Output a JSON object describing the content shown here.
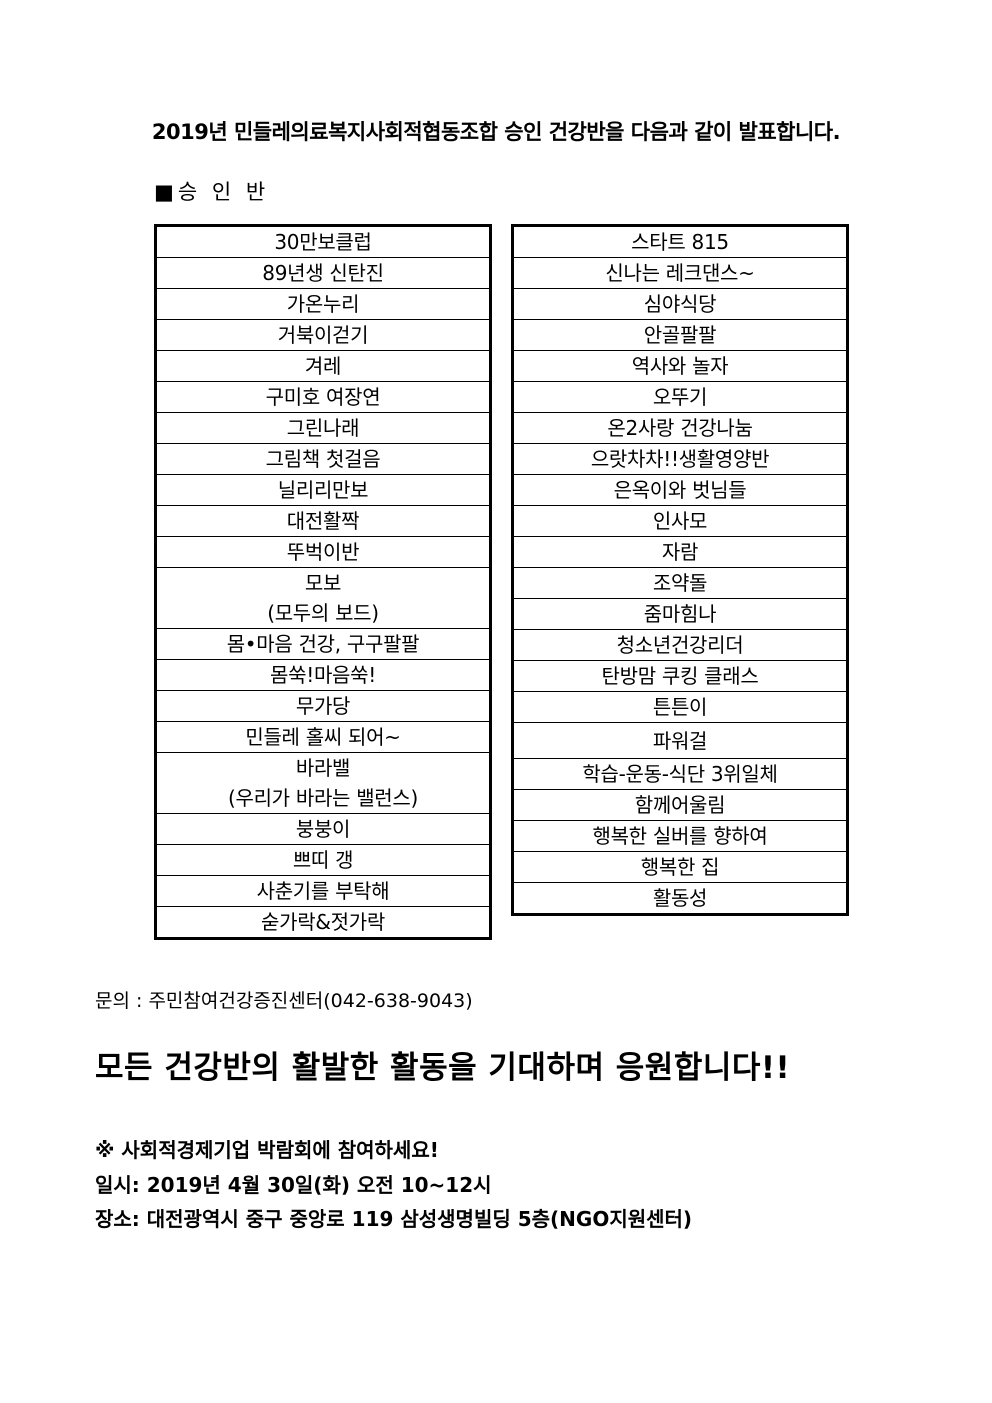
{
  "title": "2019년 민들레의료복지사회적협동조합 승인 건강반을 다음과 같이 발표합니다.",
  "section_label": "■승 인 반",
  "left_list": [
    [
      "30만보클럽"
    ],
    [
      "89년생 신탄진"
    ],
    [
      "가온누리"
    ],
    [
      "거북이걷기"
    ],
    [
      "겨레"
    ],
    [
      "구미호 여장연"
    ],
    [
      "그린나래"
    ],
    [
      "그림책 첫걸음"
    ],
    [
      "닐리리만보"
    ],
    [
      "대전활짝"
    ],
    [
      "뚜벅이반"
    ],
    [
      "모보",
      "(모두의 보드)"
    ],
    [
      "몸•마음 건강, 구구팔팔"
    ],
    [
      "몸쑥!마음쑥!"
    ],
    [
      "무가당"
    ],
    [
      "민들레 홀씨 되어~"
    ],
    [
      "바라밸",
      "(우리가 바라는 밸런스)"
    ],
    [
      "붕붕이"
    ],
    [
      "쁘띠 갱"
    ],
    [
      "사춘기를 부탁해"
    ],
    [
      "숟가락&젓가락"
    ]
  ],
  "right_list": [
    [
      "스타트 815"
    ],
    [
      "신나는 레크댄스~"
    ],
    [
      "심야식당"
    ],
    [
      "안골팔팔"
    ],
    [
      "역사와 놀자"
    ],
    [
      "오뚜기"
    ],
    [
      "온2사랑 건강나눔"
    ],
    [
      "으랏차차!!생활영양반"
    ],
    [
      "은옥이와 벗님들"
    ],
    [
      "인사모"
    ],
    [
      "자람"
    ],
    [
      "조약돌"
    ],
    [
      "줌마힘나"
    ],
    [
      "청소년건강리더"
    ],
    [
      "탄방맘 쿠킹 클래스"
    ],
    [
      "튼튼이"
    ],
    [
      "파워걸"
    ],
    [
      "학습-운동-식단 3위일체"
    ],
    [
      "함께어울림"
    ],
    [
      "행복한 실버를 향하여"
    ],
    [
      "행복한 집"
    ],
    [
      "활동성"
    ]
  ],
  "contact": "문의 : 주민참여건강증진센터(042-638-9043)",
  "cheer": "모든 건강반의 활발한 활동을 기대하며 응원합니다!!",
  "notice": {
    "headline": "※ 사회적경제기업 박람회에 참여하세요!",
    "date": "일시: 2019년 4월 30일(화) 오전 10~12시",
    "place": "장소: 대전광역시 중구 중앙로 119 삼성생명빌딩 5층(NGO지원센터)"
  }
}
